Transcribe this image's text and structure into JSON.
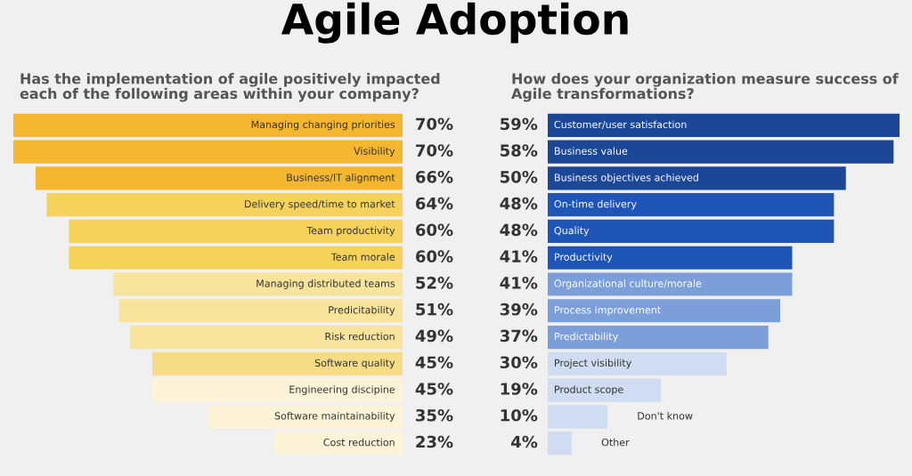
{
  "chart_data": [
    {
      "type": "bar",
      "orientation": "horizontal",
      "annotations": [
        "Agile Adoption"
      ],
      "title": "Has the implementation of agile positively impacted\neach of the following areas within your company?",
      "categories": [
        "Managing changing priorities",
        "Visibility",
        "Business/IT alignment",
        "Delivery speed/time to market",
        "Team productivity",
        "Team morale",
        "Managing distributed teams",
        "Predicitability",
        "Risk reduction",
        "Software quality",
        "Engineering discipine",
        "Software maintainability",
        "Cost reduction"
      ],
      "values": [
        70,
        70,
        66,
        64,
        60,
        60,
        52,
        51,
        49,
        45,
        45,
        35,
        23
      ],
      "value_labels": [
        "70%",
        "70%",
        "66%",
        "64%",
        "60%",
        "60%",
        "52%",
        "51%",
        "49%",
        "45%",
        "45%",
        "35%",
        "23%"
      ],
      "colors": [
        "#f6b730",
        "#f6b730",
        "#f6b730",
        "#f4d25c",
        "#f4d25c",
        "#f4d25c",
        "#f8e49a",
        "#f8e49a",
        "#f8e49a",
        "#f6dc84",
        "#fdf4d8",
        "#fdf4d8",
        "#fdf4d8"
      ],
      "xlim": [
        70,
        0
      ]
    },
    {
      "type": "bar",
      "orientation": "horizontal",
      "title": "How does your organization measure success of\nAgile transformations?",
      "categories": [
        "Customer/user satisfaction",
        "Business value",
        "Business objectives achieved",
        "On-time delivery",
        "Quality",
        "Productivity",
        "Organizational culture/morale",
        "Process improvement",
        "Predictability",
        "Project visibility",
        "Product scope",
        "Don't know",
        "Other"
      ],
      "values": [
        59,
        58,
        50,
        48,
        48,
        41,
        41,
        39,
        37,
        30,
        19,
        10,
        4
      ],
      "value_labels": [
        "59%",
        "58%",
        "50%",
        "48%",
        "48%",
        "41%",
        "41%",
        "39%",
        "37%",
        "30%",
        "19%",
        "10%",
        "4%"
      ],
      "colors": [
        "#1b4796",
        "#1b4796",
        "#1b4796",
        "#1f55b6",
        "#1f55b6",
        "#1f55b6",
        "#7c9fd9",
        "#7c9fd9",
        "#7c9fd9",
        "#cfdcf1",
        "#cfdcf1",
        "#cfdcf1",
        "#cfdcf1"
      ],
      "xlim": [
        0,
        59
      ]
    }
  ]
}
